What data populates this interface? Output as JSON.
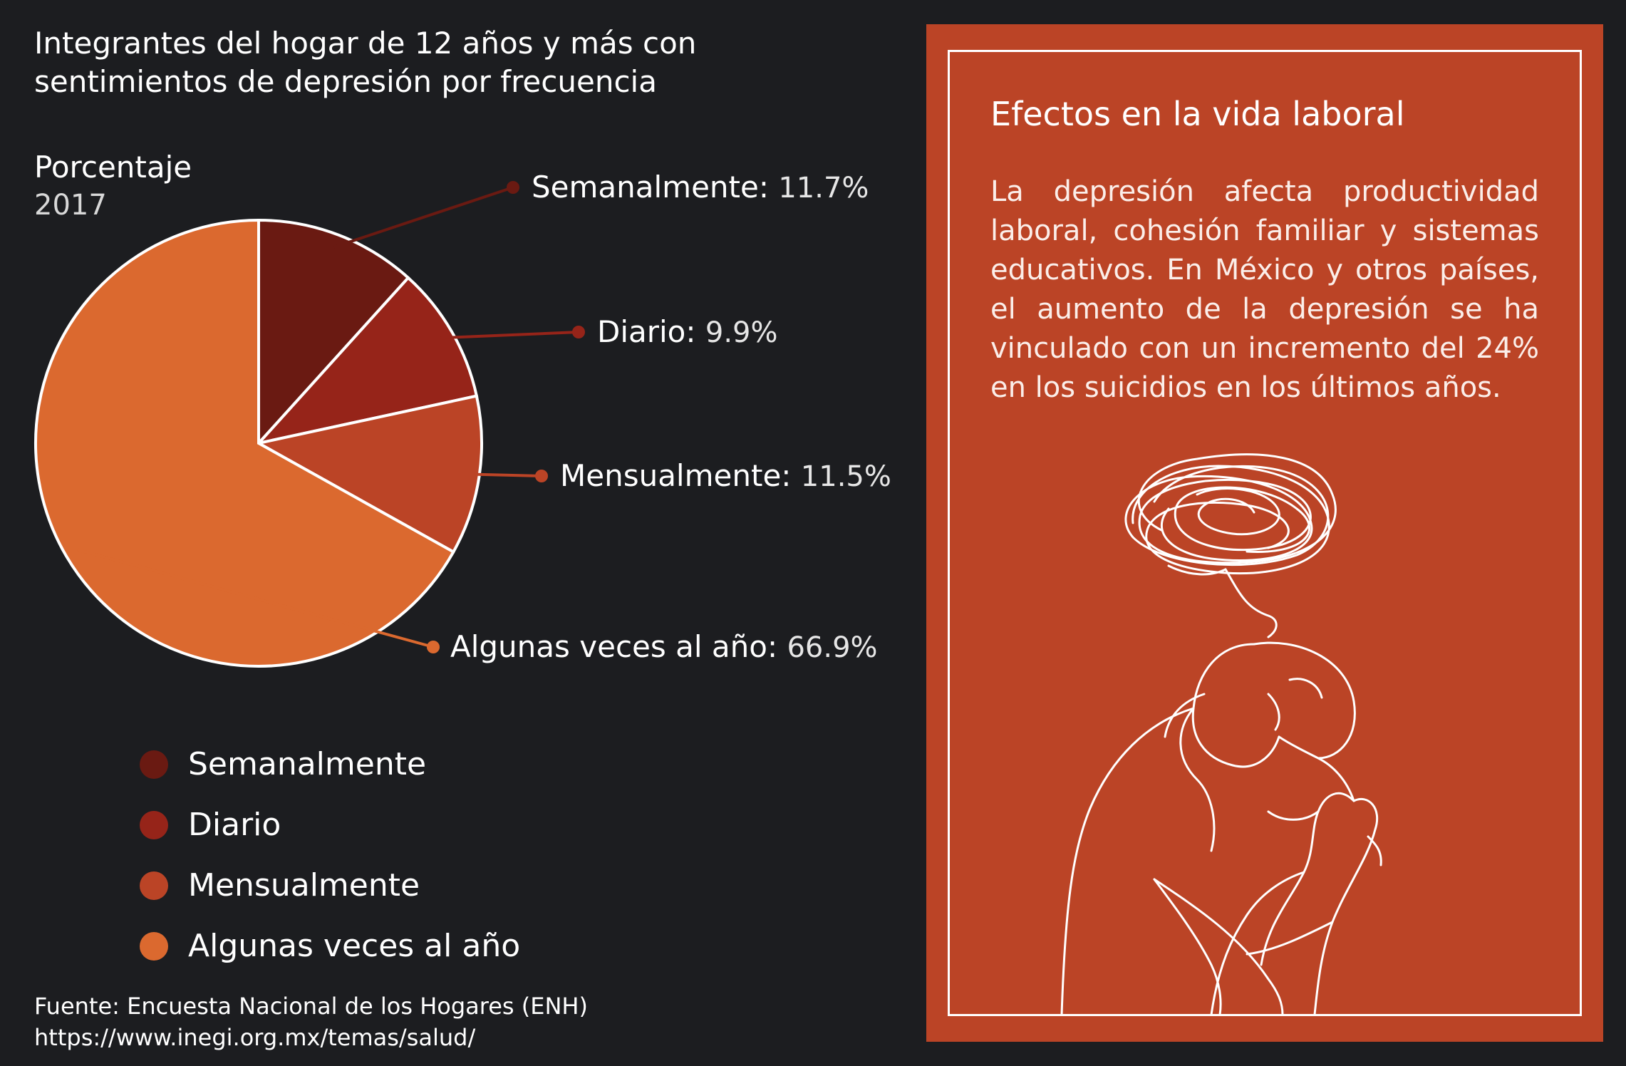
{
  "title_lines": [
    "Integrantes del hogar de 12 años y más con",
    "sentimientos de depresión por frecuencia"
  ],
  "unit_label": "Porcentaje",
  "year": "2017",
  "chart_data": {
    "type": "pie",
    "title": "Integrantes del hogar de 12 años y más con sentimientos de depresión por frecuencia",
    "categories": [
      "Semanalmente",
      "Diario",
      "Mensualmente",
      "Algunas veces al año"
    ],
    "values": [
      11.7,
      9.9,
      11.5,
      66.9
    ],
    "value_labels": [
      "11.7%",
      "9.9%",
      "11.5%",
      "66.9%"
    ],
    "colors": [
      "#6a1a12",
      "#962419",
      "#bb4426",
      "#db692f"
    ],
    "legend_placement": "bottom-left"
  },
  "legend": [
    {
      "label": "Semanalmente",
      "color": "#6a1a12"
    },
    {
      "label": "Diario",
      "color": "#962419"
    },
    {
      "label": "Mensualmente",
      "color": "#bb4426"
    },
    {
      "label": "Algunas veces al año",
      "color": "#db692f"
    }
  ],
  "source": {
    "line1": "Fuente: Encuesta Nacional de los Hogares (ENH)",
    "line2": "https://www.inegi.org.mx/temas/salud/"
  },
  "panel": {
    "title": "Efectos en la vida laboral",
    "text": "La depresión afecta productividad laboral, cohesión familiar y sistemas educativos. En México y otros países, el aumento de la depresión se ha vinculado con un incremento del 24% en los suicidios en los últimos años.",
    "background": "#bb4426",
    "illustration_icon": "depressed-person-line-art-icon"
  }
}
